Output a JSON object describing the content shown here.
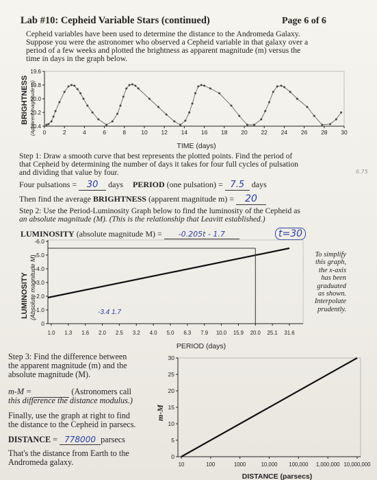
{
  "header": {
    "title": "Lab #10: Cepheid Variable Stars (continued)",
    "page": "Page 6 of 6"
  },
  "intro": {
    "l1": "Cepheid variables have been used to determine the distance to the Andromeda Galaxy.",
    "l2": "Suppose you were the astronomer who observed a Cepheid variable in that galaxy over a",
    "l3": "period of a few weeks and plotted the brightness as apparent magnitude (m) versus the",
    "l4": "time in days in the graph below."
  },
  "chart_data": [
    {
      "type": "scatter",
      "ylabel": "BRIGHTNESS",
      "ylabel2": "(Apparent magnitude m)",
      "xlabel": "TIME (days)",
      "xlim": [
        0,
        30
      ],
      "ylim": [
        19.6,
        20.4
      ],
      "y_inverted": true,
      "x_ticks": [
        "0",
        "2",
        "4",
        "6",
        "8",
        "10",
        "12",
        "14",
        "16",
        "18",
        "20",
        "22",
        "24",
        "26",
        "28",
        "30"
      ],
      "y_ticks": [
        "19.6",
        "19.8",
        "20.0",
        "20.2",
        "20.4"
      ],
      "points_x": [
        0.2,
        0.4,
        0.7,
        0.9,
        1.1,
        1.5,
        2.0,
        2.4,
        2.7,
        3.0,
        3.3,
        3.6,
        3.9,
        4.3,
        4.8,
        5.4,
        6.2,
        6.8,
        7.3,
        7.6,
        7.9,
        8.2,
        8.5,
        8.8,
        9.1,
        9.4,
        10.5,
        11.4,
        12.2,
        13.0,
        13.6,
        14.1,
        14.5,
        14.8,
        15.1,
        15.4,
        15.7,
        16.0,
        16.6,
        17.5,
        18.7,
        19.5,
        20.3,
        21.0,
        21.7,
        22.1,
        22.5,
        22.9,
        23.3,
        23.7,
        24.0,
        24.6,
        25.3,
        26.3,
        27.0,
        27.8,
        28.6,
        29.2,
        29.7
      ],
      "points_y": [
        20.38,
        20.37,
        20.33,
        20.26,
        20.18,
        20.05,
        19.9,
        19.82,
        19.8,
        19.81,
        19.86,
        19.92,
        20.0,
        20.1,
        20.2,
        20.3,
        20.38,
        20.33,
        20.22,
        20.1,
        19.97,
        19.85,
        19.8,
        19.79,
        19.81,
        19.85,
        20.0,
        20.12,
        20.23,
        20.33,
        20.38,
        20.32,
        20.2,
        20.07,
        19.92,
        19.82,
        19.8,
        19.81,
        19.85,
        19.92,
        20.1,
        20.25,
        20.38,
        20.38,
        20.3,
        20.18,
        20.05,
        19.9,
        19.82,
        19.81,
        19.83,
        19.9,
        20.0,
        20.12,
        20.25,
        20.38,
        20.37,
        20.3,
        20.2
      ]
    },
    {
      "type": "line",
      "ylabel": "LUMINOSITY",
      "ylabel2": "(Absolute magnitude M)",
      "xlabel": "PERIOD (days)",
      "x_ticks": [
        "1.0",
        "1.3",
        "1.6",
        "2.0",
        "2.5",
        "3.2",
        "4.0",
        "5.0",
        "6.3",
        "7.9",
        "10.0",
        "15.9",
        "20.0",
        "25.1",
        "31.6"
      ],
      "y_ticks": [
        "-6.0",
        "-5.0",
        "-4.0",
        "-3.0",
        "-2.0",
        "-1.0",
        "0"
      ],
      "ylim": [
        0,
        -6.0
      ],
      "y_inverted": true,
      "x": [
        1.0,
        31.6
      ],
      "y": [
        -1.9,
        -5.5
      ],
      "annotation": "To simplify this graph, the x-axis has been graduated as shown. Interpolate prudently."
    },
    {
      "type": "line",
      "ylabel": "m-M",
      "xlabel": "DISTANCE (parsecs)",
      "x_ticks": [
        "10",
        "100",
        "1000",
        "10,000",
        "100,000",
        "1,000,000",
        "10,000,000"
      ],
      "y_ticks": [
        "0",
        "5",
        "10",
        "15",
        "20",
        "25",
        "30"
      ],
      "ylim": [
        0,
        30
      ],
      "xlog": true,
      "x": [
        10,
        10000000
      ],
      "y": [
        0,
        30
      ]
    }
  ],
  "annotation_lines": [
    "To simplify",
    "this graph,",
    "the x-axis",
    "has been",
    "graduated",
    "as shown.",
    "Interpolate",
    "prudently."
  ],
  "step1": {
    "l1": "Step 1:  Draw a smooth curve that best represents the plotted points.  Find the period of",
    "l2": "that Cepheid by determining the number of days it takes for four full cycles of pulsation",
    "l3": "and dividing that value by four.",
    "four_label": "Four pulsations = ",
    "four_answer": "30",
    "days": " days",
    "period_label": "PERIOD",
    "period_rest": " (one pulsation) = ",
    "period_answer": "7.5",
    "days2": " days",
    "bright_pre": "Then find the average ",
    "bright_bold": "BRIGHTNESS",
    "bright_post": " (apparent magnitude m) = ",
    "bright_answer": "20",
    "margin_note": "6.75"
  },
  "step2": {
    "l1": "Step 2:  Use the Period-Luminosity Graph below to find the luminosity of the Cepheid as",
    "l2": "an absolute magnitude (M). (This is the relationship that Leavitt established.)",
    "lum_label": "LUMINOSITY",
    "lum_rest": " (absolute magnitude M)  = ",
    "lum_answer": "-0.205t - 1.7",
    "t_note": "t=30",
    "graph_scribble": "-3.4 1.7"
  },
  "step3": {
    "l1": "Step 3:  Find the difference between",
    "l2": "the apparent magnitude (m) and the",
    "l3": "absolute magnitude (M).",
    "mm_label": "m-M = ",
    "mm_rest": " (Astronomers call",
    "l5": "this difference the distance modulus.)",
    "l6": "Finally, use the graph at right to find",
    "l7": "the distance to the Cepheid in parsecs.",
    "dist_label": "DISTANCE",
    "dist_eq": " = ",
    "dist_answer": "778000",
    "parsecs": "parsecs",
    "l9": "That's the distance from Earth to the",
    "l10": "Andromeda galaxy."
  }
}
